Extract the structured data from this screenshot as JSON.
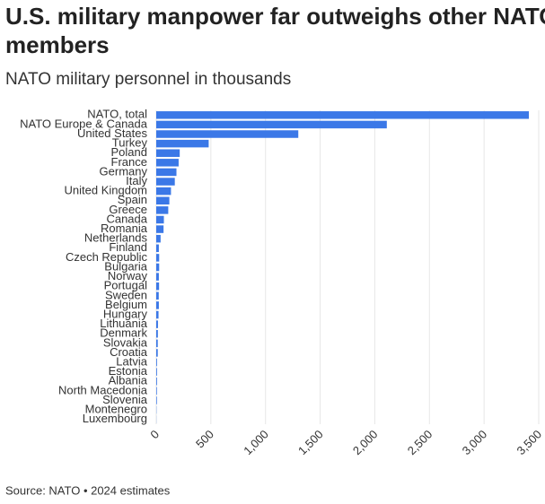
{
  "chart_data": {
    "type": "barh",
    "title": "U.S. military manpower far outweighs other NATO members",
    "subtitle": "NATO military personnel in thousands",
    "source": "Source: NATO • 2024 estimates",
    "categories": [
      "NATO, total",
      "NATO Europe & Canada",
      "United States",
      "Turkey",
      "Poland",
      "France",
      "Germany",
      "Italy",
      "United Kingdom",
      "Spain",
      "Greece",
      "Canada",
      "Romania",
      "Netherlands",
      "Finland",
      "Czech Republic",
      "Bulgaria",
      "Norway",
      "Portugal",
      "Sweden",
      "Belgium",
      "Hungary",
      "Lithuania",
      "Denmark",
      "Slovakia",
      "Croatia",
      "Latvia",
      "Estonia",
      "Albania",
      "North Macedonia",
      "Slovenia",
      "Montenegro",
      "Luxembourg"
    ],
    "values": [
      3410,
      2110,
      1300,
      480,
      215,
      205,
      185,
      170,
      135,
      120,
      110,
      70,
      67,
      40,
      24,
      27,
      27,
      24,
      26,
      23,
      24,
      21,
      16,
      15,
      14,
      14,
      7,
      7,
      7,
      6,
      6,
      2,
      1
    ],
    "color": "#3b78e7",
    "xlim": [
      0,
      3500
    ],
    "xticks": [
      0,
      500,
      {
        "value": 1000,
        "label": "1,000"
      },
      {
        "value": 1500,
        "label": "1,500"
      },
      {
        "value": 2000,
        "label": "2,000"
      },
      {
        "value": 2500,
        "label": "2,500"
      },
      {
        "value": 3000,
        "label": "3,000"
      },
      {
        "value": 3500,
        "label": "3,500"
      }
    ],
    "grid": true
  }
}
